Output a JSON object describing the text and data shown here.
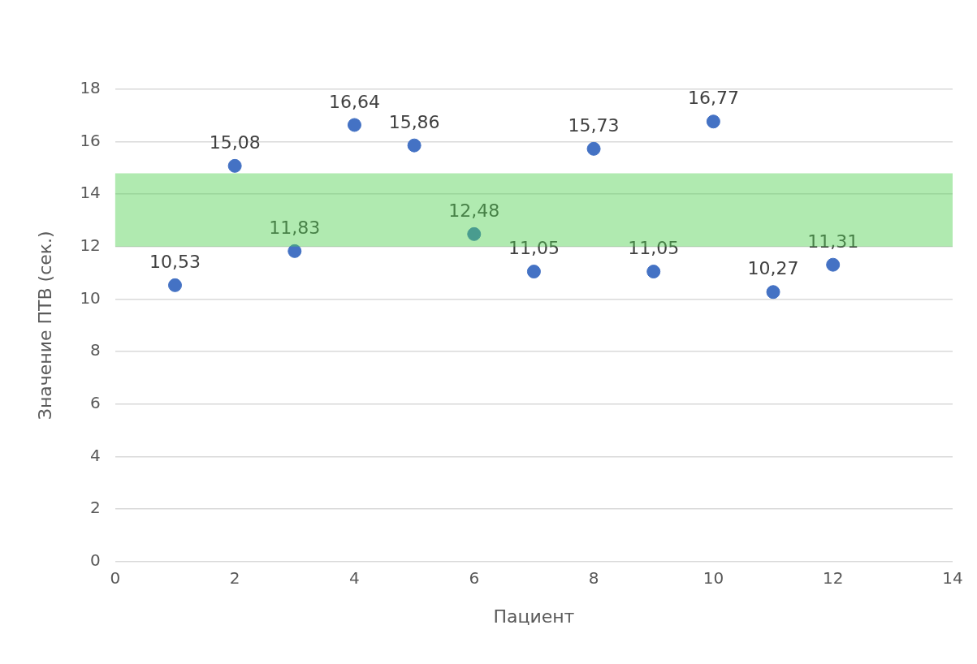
{
  "chart_data": {
    "type": "scatter",
    "xlabel": "Пациент",
    "ylabel": "Значение ПТВ (сек.)",
    "x": [
      1,
      2,
      3,
      4,
      5,
      6,
      7,
      8,
      9,
      10,
      11,
      12
    ],
    "values": [
      10.53,
      15.08,
      11.83,
      16.64,
      15.86,
      12.48,
      11.05,
      15.73,
      11.05,
      16.77,
      10.27,
      11.31
    ],
    "value_labels": [
      "10,53",
      "15,08",
      "11,83",
      "16,64",
      "15,86",
      "12,48",
      "11,05",
      "15,73",
      "11,05",
      "16,77",
      "10,27",
      "11,31"
    ],
    "color": "#4472c4",
    "marker": "circle",
    "xlim": [
      0,
      14
    ],
    "xticks": [
      0,
      2,
      4,
      6,
      8,
      10,
      12,
      14
    ],
    "ylim": [
      0,
      18
    ],
    "yticks": [
      0,
      2,
      4,
      6,
      8,
      10,
      12,
      14,
      16,
      18
    ],
    "grid": "y",
    "legend": false,
    "bands": [
      {
        "axis": "y",
        "from": 12,
        "to": 14.8,
        "color": "#4fd04f"
      }
    ]
  }
}
